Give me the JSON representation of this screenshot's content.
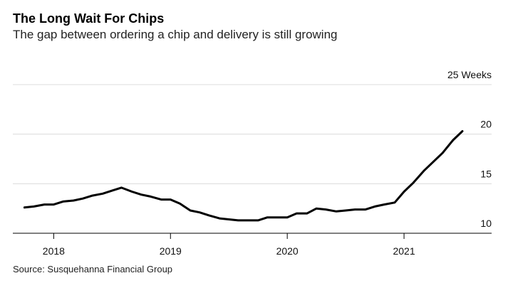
{
  "header": {
    "title": "The Long Wait For Chips",
    "subtitle": "The gap between ordering a chip and delivery is still growing"
  },
  "footer": {
    "source": "Source: Susquehanna Financial Group"
  },
  "colors": {
    "line": "#000000",
    "grid": "#dcdcdc"
  },
  "chart_data": {
    "type": "line",
    "title": "The Long Wait For Chips",
    "subtitle": "The gap between ordering a chip and delivery is still growing",
    "xlabel": "",
    "ylabel": "",
    "ylim": [
      10,
      25
    ],
    "xlim": [
      2017.65,
      2021.75
    ],
    "y_ticks": [
      {
        "value": 10,
        "label": "10"
      },
      {
        "value": 15,
        "label": "15"
      },
      {
        "value": 20,
        "label": "20"
      },
      {
        "value": 25,
        "label": "25 Weeks"
      }
    ],
    "x_ticks": [
      {
        "value": 2018,
        "label": "2018"
      },
      {
        "value": 2019,
        "label": "2019"
      },
      {
        "value": 2020,
        "label": "2020"
      },
      {
        "value": 2021,
        "label": "2021"
      }
    ],
    "grid": true,
    "legend": "none",
    "series": [
      {
        "x": [
          2017.75,
          2017.83,
          2017.92,
          2018.0,
          2018.08,
          2018.17,
          2018.25,
          2018.33,
          2018.42,
          2018.5,
          2018.58,
          2018.67,
          2018.75,
          2018.83,
          2018.92,
          2019.0,
          2019.08,
          2019.17,
          2019.25,
          2019.33,
          2019.42,
          2019.58,
          2019.75,
          2019.83,
          2019.92,
          2020.0,
          2020.08,
          2020.17,
          2020.25,
          2020.33,
          2020.42,
          2020.5,
          2020.58,
          2020.67,
          2020.75,
          2020.83,
          2020.92,
          2021.0,
          2021.08,
          2021.17,
          2021.25,
          2021.33,
          2021.42,
          2021.5
        ],
        "y": [
          12.6,
          12.7,
          12.9,
          12.9,
          13.2,
          13.3,
          13.5,
          13.8,
          14.0,
          14.3,
          14.6,
          14.2,
          13.9,
          13.7,
          13.4,
          13.4,
          13.0,
          12.3,
          12.1,
          11.8,
          11.5,
          11.3,
          11.3,
          11.6,
          11.6,
          11.6,
          12.0,
          12.0,
          12.5,
          12.4,
          12.2,
          12.3,
          12.4,
          12.4,
          12.7,
          12.9,
          13.1,
          14.2,
          15.1,
          16.3,
          17.2,
          18.1,
          19.4,
          20.3
        ]
      }
    ]
  }
}
